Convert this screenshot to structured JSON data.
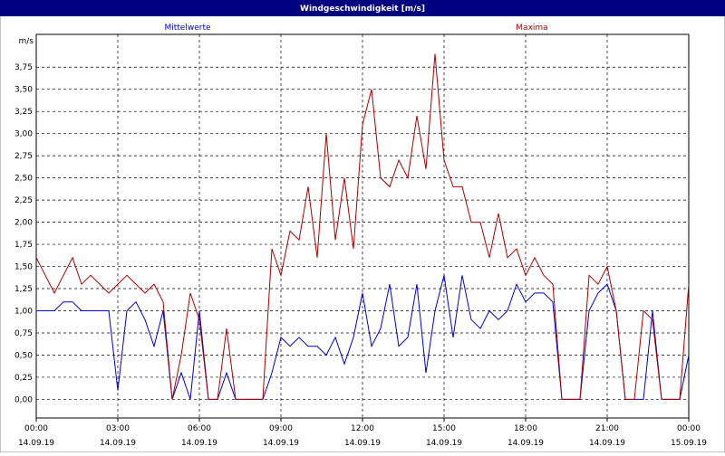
{
  "chart_data": {
    "type": "line",
    "title": "Windgeschwindigkeit [m/s]",
    "y_unit": "m/s",
    "x": [
      0,
      20,
      40,
      60,
      80,
      100,
      120,
      140,
      160,
      180,
      200,
      220,
      240,
      260,
      280,
      300,
      320,
      340,
      360,
      380,
      400,
      420,
      440,
      460,
      480,
      500,
      520,
      540,
      560,
      580,
      600,
      620,
      640,
      660,
      680,
      700,
      720,
      740,
      760,
      780,
      800,
      820,
      840,
      860,
      880,
      900,
      920,
      940,
      960,
      980,
      1000,
      1020,
      1040,
      1060,
      1080,
      1100,
      1120,
      1140,
      1160,
      1180,
      1200,
      1220,
      1240,
      1260,
      1280,
      1300,
      1320,
      1340,
      1360,
      1380,
      1400,
      1420,
      1440
    ],
    "series": [
      {
        "name": "Mittelwerte",
        "color": "#0000cc",
        "values": [
          1.0,
          1.0,
          1.0,
          1.1,
          1.1,
          1.0,
          1.0,
          1.0,
          1.0,
          0.1,
          1.0,
          1.1,
          0.9,
          0.6,
          1.0,
          0.0,
          0.3,
          0.0,
          1.0,
          0.0,
          0.0,
          0.3,
          0.0,
          0.0,
          0.0,
          0.0,
          0.3,
          0.7,
          0.6,
          0.7,
          0.6,
          0.6,
          0.5,
          0.7,
          0.4,
          0.7,
          1.2,
          0.6,
          0.8,
          1.3,
          0.6,
          0.7,
          1.3,
          0.3,
          1.0,
          1.4,
          0.7,
          1.4,
          0.9,
          0.8,
          1.0,
          0.9,
          1.0,
          1.3,
          1.1,
          1.2,
          1.2,
          1.1,
          0.0,
          0.0,
          0.0,
          1.0,
          1.2,
          1.3,
          1.0,
          0.0,
          0.0,
          0.0,
          1.0,
          0.0,
          0.0,
          0.0,
          0.5
        ]
      },
      {
        "name": "Maxima",
        "color": "#aa0000",
        "values": [
          1.6,
          1.4,
          1.2,
          1.4,
          1.6,
          1.3,
          1.4,
          1.3,
          1.2,
          1.3,
          1.4,
          1.3,
          1.2,
          1.3,
          1.1,
          0.0,
          0.5,
          1.2,
          0.9,
          0.0,
          0.0,
          0.8,
          0.0,
          0.0,
          0.0,
          0.0,
          1.7,
          1.4,
          1.9,
          1.8,
          2.4,
          1.6,
          3.0,
          1.8,
          2.5,
          1.7,
          3.1,
          3.5,
          2.5,
          2.4,
          2.7,
          2.5,
          3.2,
          2.6,
          3.9,
          2.7,
          2.4,
          2.4,
          2.0,
          2.0,
          1.6,
          2.1,
          1.6,
          1.7,
          1.4,
          1.6,
          1.4,
          1.3,
          0.0,
          0.0,
          0.0,
          1.4,
          1.3,
          1.5,
          1.0,
          0.0,
          0.0,
          1.0,
          0.9,
          0.0,
          0.0,
          0.0,
          1.3
        ]
      }
    ],
    "xlim": [
      0,
      1440
    ],
    "xticks": [
      {
        "value": 0,
        "label": "00:00"
      },
      {
        "value": 180,
        "label": "03:00"
      },
      {
        "value": 360,
        "label": "06:00"
      },
      {
        "value": 540,
        "label": "09:00"
      },
      {
        "value": 720,
        "label": "12:00"
      },
      {
        "value": 900,
        "label": "15:00"
      },
      {
        "value": 1080,
        "label": "18:00"
      },
      {
        "value": 1260,
        "label": "21:00"
      },
      {
        "value": 1440,
        "label": "00:00"
      }
    ],
    "xtick_dates": [
      "14.09.19",
      "14.09.19",
      "14.09.19",
      "14.09.19",
      "14.09.19",
      "14.09.19",
      "14.09.19",
      "14.09.19",
      "15.09.19"
    ],
    "ylim": [
      -0.21,
      4.12
    ],
    "yticks": [
      {
        "value": 0,
        "label": "0,00"
      },
      {
        "value": 0.25,
        "label": "0,25"
      },
      {
        "value": 0.5,
        "label": "0,50"
      },
      {
        "value": 0.75,
        "label": "0,75"
      },
      {
        "value": 1,
        "label": "1,00"
      },
      {
        "value": 1.25,
        "label": "1,25"
      },
      {
        "value": 1.5,
        "label": "1,50"
      },
      {
        "value": 1.75,
        "label": "1,75"
      },
      {
        "value": 2,
        "label": "2,00"
      },
      {
        "value": 2.25,
        "label": "2,25"
      },
      {
        "value": 2.5,
        "label": "2,50"
      },
      {
        "value": 2.75,
        "label": "2,75"
      },
      {
        "value": 3,
        "label": "3,00"
      },
      {
        "value": 3.25,
        "label": "3,25"
      },
      {
        "value": 3.5,
        "label": "3,50"
      },
      {
        "value": 3.75,
        "label": "3,75"
      }
    ],
    "grid": true
  }
}
